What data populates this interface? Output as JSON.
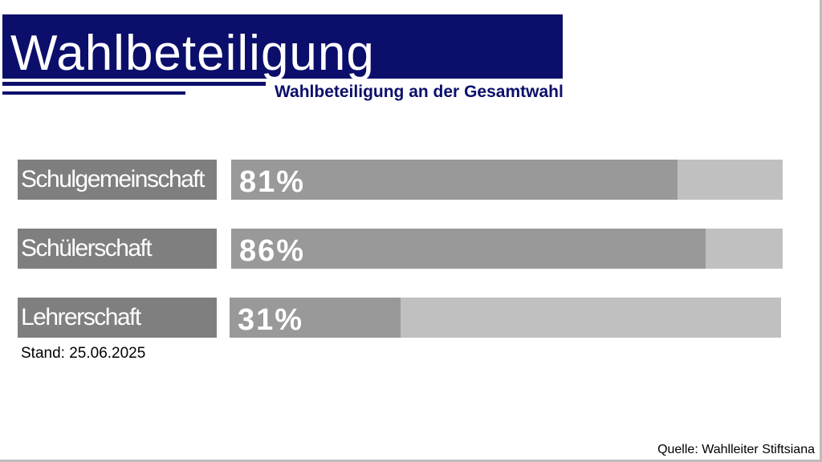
{
  "slide": {
    "title": "Wahlbeteiligung",
    "subtitle": "Wahlbeteiligung an der Gesamtwahl",
    "stand": "Stand: 25.06.2025",
    "source": "Quelle: Wahlleiter Stiftsiana"
  },
  "colors": {
    "title_band": "#0b0f6b",
    "subtitle_text": "#0b0f6b",
    "label_background": "#7f7f7f",
    "bar_fill": "#999999",
    "bar_track": "#c0c0c0"
  },
  "chart_data": {
    "type": "bar",
    "orientation": "horizontal",
    "title": "Wahlbeteiligung",
    "subtitle": "Wahlbeteiligung an der Gesamtwahl",
    "categories": [
      "Schulgemeinschaft",
      "Schülerschaft",
      "Lehrerschaft"
    ],
    "values": [
      81,
      86,
      31
    ],
    "value_labels": [
      "81%",
      "86%",
      "31%"
    ],
    "unit": "%",
    "xlim": [
      0,
      100
    ],
    "grid": false,
    "legend": "none"
  }
}
